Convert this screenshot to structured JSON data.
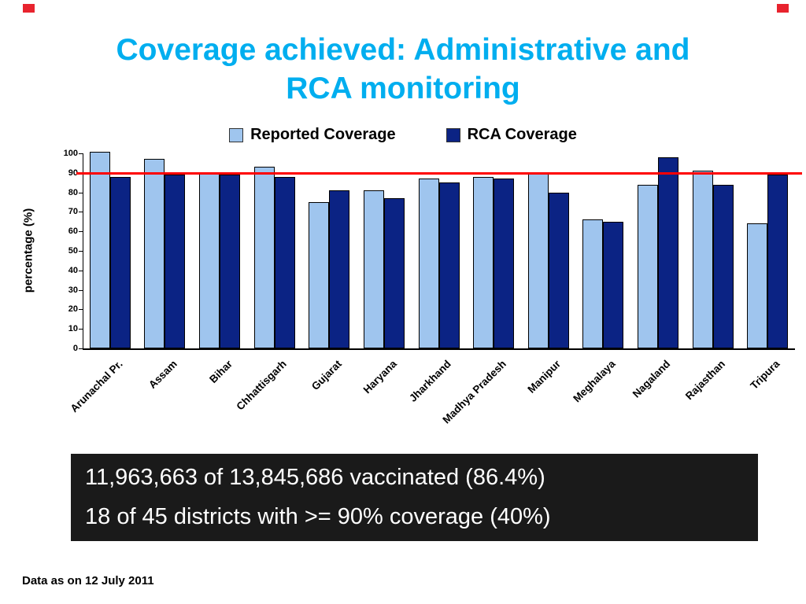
{
  "slide": {
    "title_line1": "Coverage achieved: Administrative and",
    "title_line2": "RCA monitoring",
    "title_color": "#00AEEF",
    "accent_red": "#E8232E",
    "footer": "Data as on 12 July 2011",
    "info_box": {
      "line1": "11,963,663 of 13,845,686 vaccinated (86.4%)",
      "line2": "18 of 45 districts with >= 90% coverage (40%)"
    }
  },
  "chart_data": {
    "type": "bar",
    "title": "",
    "xlabel": "",
    "ylabel": "percentage (%)",
    "ylim": [
      0,
      100
    ],
    "yticks": [
      0,
      10,
      20,
      30,
      40,
      50,
      60,
      70,
      80,
      90,
      100
    ],
    "grid": false,
    "legend_position": "top",
    "categories": [
      "Arunachal Pr.",
      "Assam",
      "Bihar",
      "Chhattisgarh",
      "Gujarat",
      "Haryana",
      "Jharkhand",
      "Madhya Pradesh",
      "Manipur",
      "Meghalaya",
      "Nagaland",
      "Rajasthan",
      "Tripura"
    ],
    "series": [
      {
        "name": "Reported Coverage",
        "color": "#9FC5EE",
        "values": [
          101,
          97,
          90,
          93,
          75,
          81,
          87,
          88,
          90,
          66,
          84,
          91,
          64
        ]
      },
      {
        "name": "RCA Coverage",
        "color": "#0B2384",
        "values": [
          88,
          89,
          89,
          88,
          81,
          77,
          85,
          87,
          80,
          65,
          98,
          84,
          89
        ]
      }
    ],
    "reference_line": {
      "value": 90,
      "color": "#FF0000"
    }
  }
}
